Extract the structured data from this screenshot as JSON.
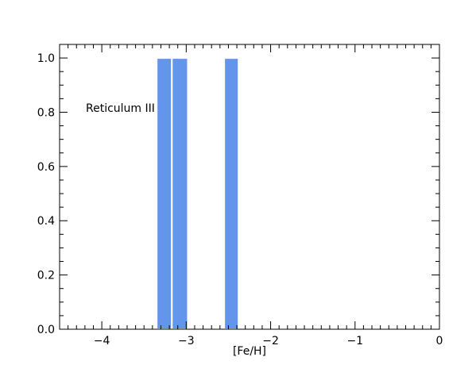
{
  "chart_data": {
    "type": "histogram",
    "xlabel": "[Fe/H]",
    "annotation": "Reticulum III",
    "bins": [
      -3.35,
      -3.17,
      -2.98,
      -2.55,
      -2.38
    ],
    "values": [
      1,
      1,
      0,
      1
    ],
    "color": "#6495ed",
    "xlim": [
      -4.5,
      0
    ],
    "ylim": [
      0,
      1.05
    ],
    "xticks": [
      {
        "value": -4,
        "label": "−4"
      },
      {
        "value": -3,
        "label": "−3"
      },
      {
        "value": -2,
        "label": "−2"
      },
      {
        "value": -1,
        "label": "−1"
      },
      0
    ],
    "yticks": [
      {
        "value": 0,
        "label": "0.0"
      },
      {
        "value": 0.2,
        "label": "0.2"
      },
      {
        "value": 0.4,
        "label": "0.4"
      },
      {
        "value": 0.6,
        "label": "0.6"
      },
      {
        "value": 0.8,
        "label": "0.8"
      },
      {
        "value": 1,
        "label": "1.0"
      }
    ]
  }
}
